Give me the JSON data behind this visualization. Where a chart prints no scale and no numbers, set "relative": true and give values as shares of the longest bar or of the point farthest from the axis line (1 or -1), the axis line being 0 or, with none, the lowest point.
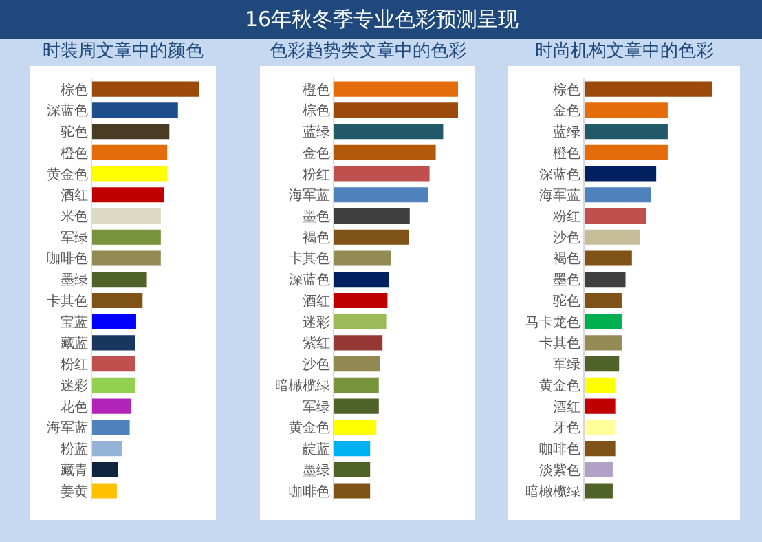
{
  "chart_data": [
    {
      "type": "other",
      "title": "16年秋冬季专业色彩预测呈现"
    },
    {
      "type": "bar",
      "orientation": "horizontal",
      "relative": true,
      "title": "时装周文章中的颜色",
      "categories": [
        "棕色",
        "深蓝色",
        "驼色",
        "橙色",
        "黄金色",
        "酒红",
        "米色",
        "军绿",
        "咖啡色",
        "墨绿",
        "卡其色",
        "宝蓝",
        "藏蓝",
        "粉红",
        "迷彩",
        "花色",
        "海军蓝",
        "粉蓝",
        "藏青",
        "姜黄"
      ],
      "values": [
        1.0,
        0.8,
        0.72,
        0.7,
        0.7,
        0.67,
        0.64,
        0.64,
        0.64,
        0.51,
        0.47,
        0.41,
        0.4,
        0.4,
        0.4,
        0.36,
        0.35,
        0.28,
        0.24,
        0.23
      ],
      "colors": [
        "#9c4a0c",
        "#1f4e8c",
        "#4a3b24",
        "#e46c0a",
        "#ffff00",
        "#c00000",
        "#ddd9c3",
        "#77933c",
        "#948a54",
        "#4f6228",
        "#7f5217",
        "#0000ff",
        "#17375e",
        "#c0504d",
        "#92d050",
        "#b224b8",
        "#4f81bd",
        "#95b3d7",
        "#0f243e",
        "#ffc000"
      ]
    },
    {
      "type": "bar",
      "orientation": "horizontal",
      "relative": true,
      "title": "色彩趋势类文章中的色彩",
      "categories": [
        "橙色",
        "棕色",
        "蓝绿",
        "金色",
        "粉红",
        "海军蓝",
        "墨色",
        "褐色",
        "卡其色",
        "深蓝色",
        "酒红",
        "迷彩",
        "紫红",
        "沙色",
        "暗橄榄绿",
        "军绿",
        "黄金色",
        "靛蓝",
        "墨绿",
        "咖啡色"
      ],
      "values": [
        1.0,
        1.0,
        0.88,
        0.82,
        0.77,
        0.76,
        0.61,
        0.6,
        0.46,
        0.44,
        0.43,
        0.42,
        0.39,
        0.37,
        0.36,
        0.36,
        0.34,
        0.29,
        0.29,
        0.29
      ],
      "colors": [
        "#e46c0a",
        "#9c4a0c",
        "#215968",
        "#b35a0a",
        "#c0504d",
        "#4f81bd",
        "#404040",
        "#7f5217",
        "#948a54",
        "#002060",
        "#c00000",
        "#9bbb59",
        "#953735",
        "#938953",
        "#77933c",
        "#4f6228",
        "#ffff00",
        "#00b0f0",
        "#4f6228",
        "#7f5217"
      ]
    },
    {
      "type": "bar",
      "orientation": "horizontal",
      "relative": true,
      "title": "时尚机构文章中的色彩",
      "categories": [
        "棕色",
        "金色",
        "蓝绿",
        "橙色",
        "深蓝色",
        "海军蓝",
        "粉红",
        "沙色",
        "褐色",
        "墨色",
        "驼色",
        "马卡龙色",
        "卡其色",
        "军绿",
        "黄金色",
        "酒红",
        "牙色",
        "咖啡色",
        "淡紫色",
        "暗橄榄绿"
      ],
      "values": [
        1.0,
        0.65,
        0.65,
        0.65,
        0.56,
        0.52,
        0.48,
        0.43,
        0.37,
        0.32,
        0.29,
        0.29,
        0.29,
        0.27,
        0.24,
        0.24,
        0.24,
        0.24,
        0.22,
        0.22
      ],
      "colors": [
        "#9c4a0c",
        "#e46c0a",
        "#215968",
        "#e46c0a",
        "#002060",
        "#4f81bd",
        "#c0504d",
        "#c4bd97",
        "#7f5217",
        "#404040",
        "#7f5217",
        "#00b050",
        "#948a54",
        "#4f6228",
        "#ffff00",
        "#c00000",
        "#ffff99",
        "#7f5217",
        "#b2a1c7",
        "#4f6228"
      ]
    }
  ]
}
